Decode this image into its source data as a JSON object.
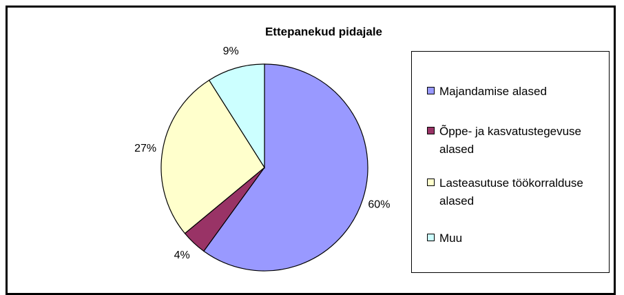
{
  "chart_data": {
    "type": "pie",
    "title": "Ettepanekud pidajale",
    "categories": [
      "Majandamise alased",
      "Õppe- ja kasvatustegevuse alased",
      "Lasteasutuse töökorralduse alased",
      "Muu"
    ],
    "values": [
      60,
      4,
      27,
      9
    ],
    "value_labels": [
      "60%",
      "4%",
      "27%",
      "9%"
    ],
    "colors": [
      "#9999ff",
      "#993366",
      "#ffffcc",
      "#ccffff"
    ],
    "legend": "right"
  }
}
